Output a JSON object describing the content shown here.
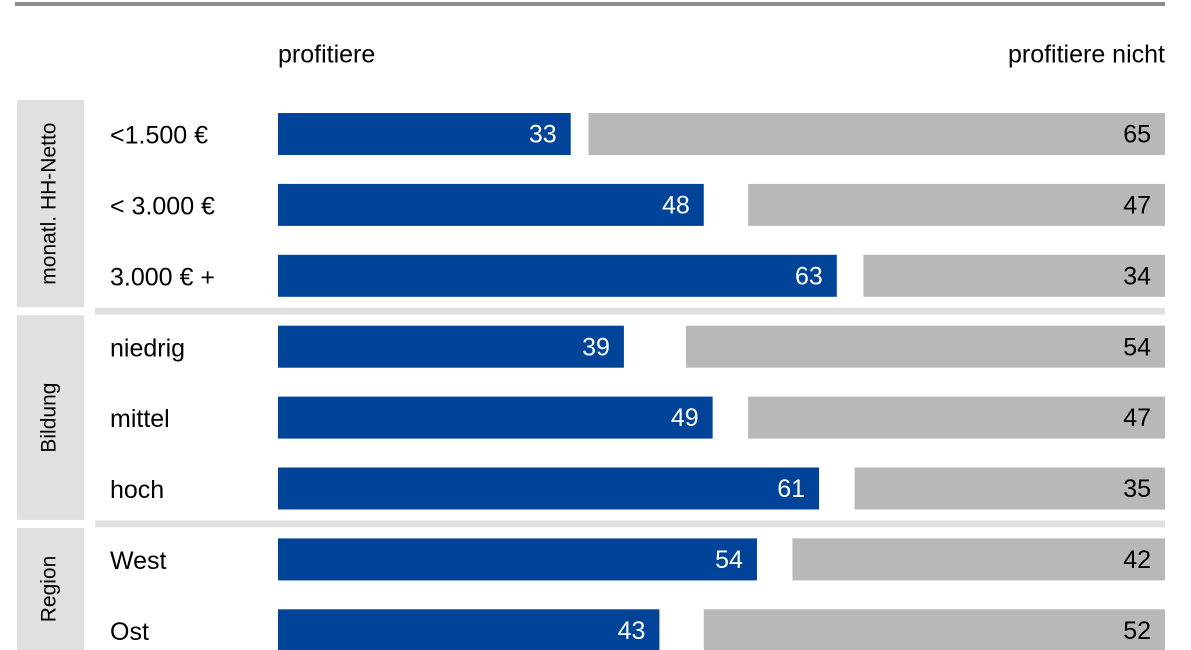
{
  "chart_data": {
    "type": "bar",
    "series_headers": true,
    "groups": [
      {
        "name": "monatl. HH-Netto",
        "categories": [
          "<1.500 €",
          "< 3.000 €",
          "3.000 € +"
        ]
      },
      {
        "name": "Bildung",
        "categories": [
          "niedrig",
          "mittel",
          "hoch"
        ]
      },
      {
        "name": "Region",
        "categories": [
          "West",
          "Ost"
        ]
      }
    ],
    "series": [
      {
        "name": "profitiere",
        "color": "#00449a",
        "values": [
          33,
          48,
          63,
          39,
          49,
          61,
          54,
          43
        ]
      },
      {
        "name": "profitiere nicht",
        "color": "#b8b8b8",
        "values": [
          65,
          47,
          34,
          54,
          47,
          35,
          42,
          52
        ]
      }
    ],
    "xlim": [
      0,
      100
    ]
  }
}
